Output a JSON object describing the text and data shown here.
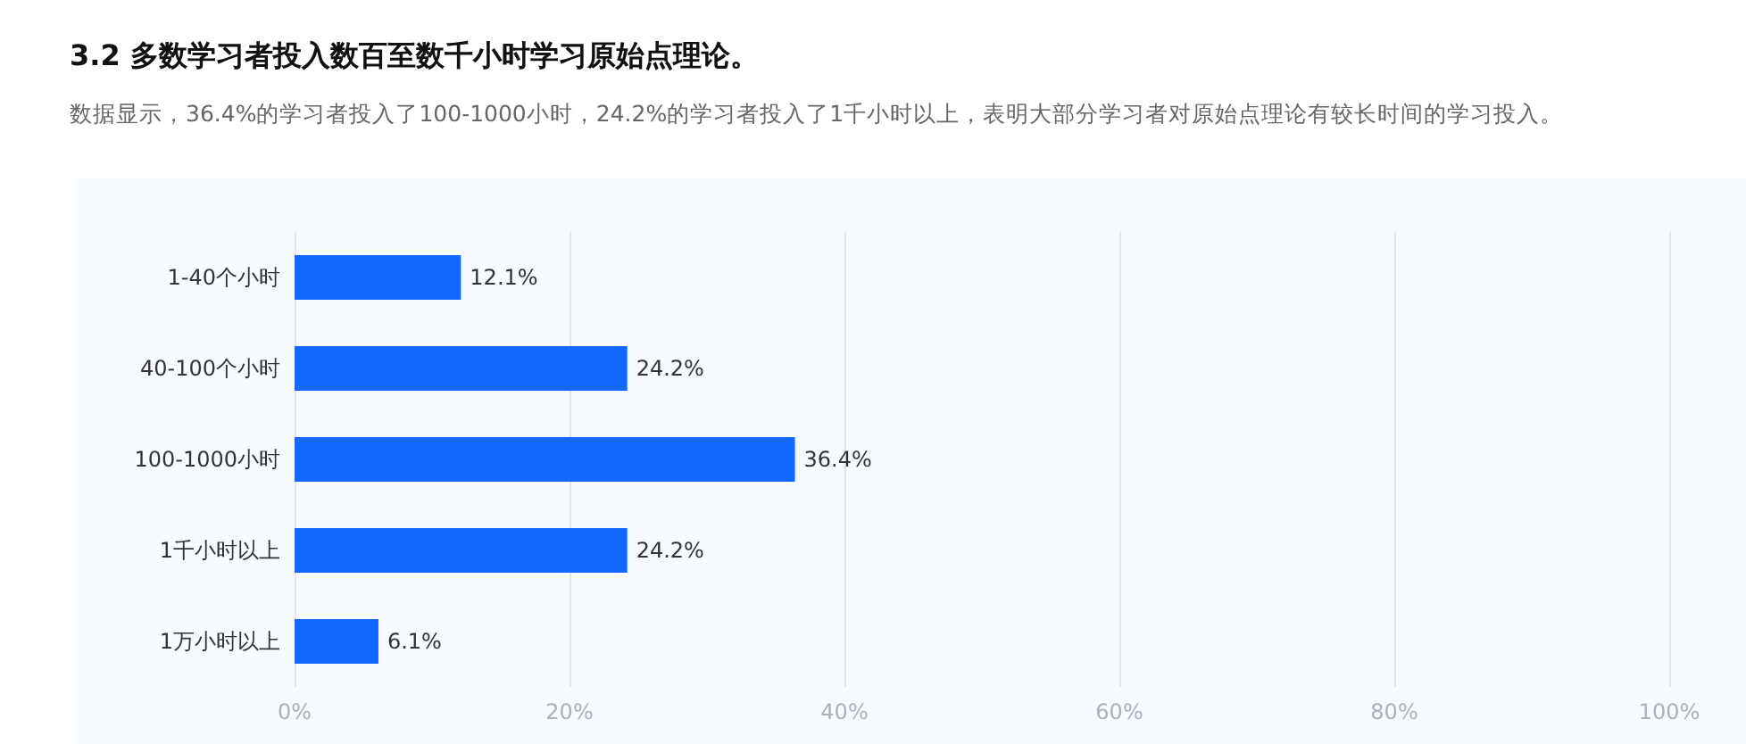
{
  "chart_data": {
    "type": "bar",
    "orientation": "horizontal",
    "title": "3.2 多数学习者投入数百至数千小时学习原始点理论。",
    "subtitle": "数据显示，36.4%的学习者投入了100-1000小时，24.2%的学习者投入了1千小时以上，表明大部分学习者对原始点理论有较长时间的学习投入。",
    "categories": [
      "1-40个小时",
      "40-100个小时",
      "100-1000小时",
      "1千小时以上",
      "1万小时以上"
    ],
    "values": [
      12.1,
      24.2,
      36.4,
      24.2,
      6.1
    ],
    "value_labels": [
      "12.1%",
      "24.2%",
      "36.4%",
      "24.2%",
      "6.1%"
    ],
    "color": "#1467ff",
    "xlim": [
      0,
      100
    ],
    "xticks": [
      {
        "value": 0,
        "label": "0%"
      },
      {
        "value": 20,
        "label": "20%"
      },
      {
        "value": 40,
        "label": "40%"
      },
      {
        "value": 60,
        "label": "60%"
      },
      {
        "value": 80,
        "label": "80%"
      },
      {
        "value": 100,
        "label": "100%"
      }
    ],
    "grid": "x"
  }
}
